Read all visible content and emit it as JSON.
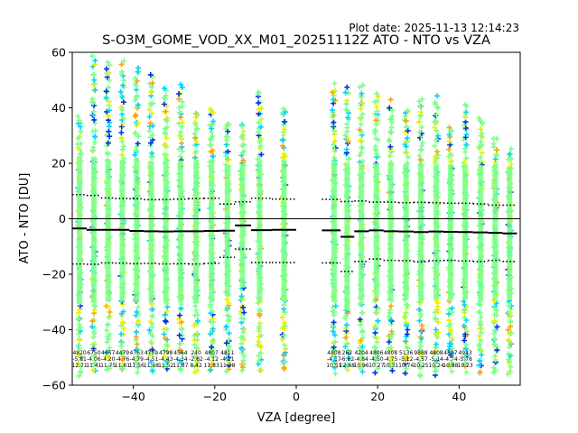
{
  "plot_date": "Plot date: 2025-11-13 12:14:23",
  "chart_data": {
    "type": "scatter",
    "title": "S-O3M_GOME_VOD_XX_M01_20251112Z ATO - NTO vs VZA",
    "xlabel": "VZA [degree]",
    "ylabel": "ATO - NTO [DU]",
    "xlim": [
      -55,
      55
    ],
    "ylim": [
      -60,
      60
    ],
    "x_ticks": [
      -40,
      -20,
      0,
      20,
      40
    ],
    "y_ticks": [
      -60,
      -40,
      -20,
      0,
      20,
      40,
      60
    ],
    "zero_line": 0,
    "colors": {
      "low": "#0033dd",
      "mid_low": "#00d4ff",
      "mid": "#7cff8a",
      "mid_high": "#e8f000",
      "high": "#ffa200"
    },
    "bins": [
      {
        "vza": -53.2,
        "mean": -3.5,
        "upper": 8.7,
        "lower": -16.3,
        "spread_top": 37,
        "spread_bottom": -57
      },
      {
        "vza": -49.7,
        "mean": -4.0,
        "upper": 8.4,
        "lower": -16.4,
        "spread_top": 58,
        "spread_bottom": -55
      },
      {
        "vza": -46.2,
        "mean": -4.0,
        "upper": 7.5,
        "lower": -15.9,
        "spread_top": 57,
        "spread_bottom": -55
      },
      {
        "vza": -42.7,
        "mean": -4.0,
        "upper": 7.3,
        "lower": -16.0,
        "spread_top": 56,
        "spread_bottom": -55
      },
      {
        "vza": -39.2,
        "mean": -4.4,
        "upper": 7.2,
        "lower": -16.2,
        "spread_top": 55,
        "spread_bottom": -55
      },
      {
        "vza": -35.6,
        "mean": -4.5,
        "upper": 6.9,
        "lower": -16.1,
        "spread_top": 52,
        "spread_bottom": -55
      },
      {
        "vza": -32.0,
        "mean": -4.6,
        "upper": 6.9,
        "lower": -16.3,
        "spread_top": 47,
        "spread_bottom": -55
      },
      {
        "vza": -28.4,
        "mean": -4.5,
        "upper": 7.1,
        "lower": -16.2,
        "spread_top": 48,
        "spread_bottom": -55
      },
      {
        "vza": -24.6,
        "mean": -4.5,
        "upper": 7.3,
        "lower": -16.3,
        "spread_top": 38,
        "spread_bottom": -55
      },
      {
        "vza": -20.8,
        "mean": -4.4,
        "upper": 7.4,
        "lower": -16.1,
        "spread_top": 40,
        "spread_bottom": -55
      },
      {
        "vza": -16.9,
        "mean": -4.3,
        "upper": 5.3,
        "lower": -13.9,
        "spread_top": 35,
        "spread_bottom": -55
      },
      {
        "vza": -13.2,
        "mean": -2.4,
        "upper": 6.1,
        "lower": -10.9,
        "spread_top": 34,
        "spread_bottom": -55
      },
      {
        "vza": -9.0,
        "mean": -4.1,
        "upper": 7.4,
        "lower": -15.8,
        "spread_top": 46,
        "spread_bottom": -55
      },
      {
        "vza": -3.0,
        "mean": -4.0,
        "upper": 7.1,
        "lower": -15.8,
        "spread_top": 40,
        "spread_bottom": -55
      },
      {
        "vza": 9.3,
        "mean": -4.2,
        "upper": 7.0,
        "lower": -15.9,
        "spread_top": 48,
        "spread_bottom": -55
      },
      {
        "vza": 12.5,
        "mean": -6.5,
        "upper": 6.2,
        "lower": -19.0,
        "spread_top": 47,
        "spread_bottom": -55
      },
      {
        "vza": 16.0,
        "mean": -4.5,
        "upper": 6.4,
        "lower": -15.4,
        "spread_top": 48,
        "spread_bottom": -55
      },
      {
        "vza": 19.7,
        "mean": -4.2,
        "upper": 6.0,
        "lower": -14.5,
        "spread_top": 45,
        "spread_bottom": -55
      },
      {
        "vza": 23.2,
        "mean": -4.5,
        "upper": 6.0,
        "lower": -15.0,
        "spread_top": 42,
        "spread_bottom": -55
      },
      {
        "vza": 27.0,
        "mean": -4.6,
        "upper": 5.8,
        "lower": -15.1,
        "spread_top": 40,
        "spread_bottom": -55
      },
      {
        "vza": 30.6,
        "mean": -4.8,
        "upper": 5.9,
        "lower": -15.5,
        "spread_top": 43,
        "spread_bottom": -57
      },
      {
        "vza": 34.4,
        "mean": -4.6,
        "upper": 5.8,
        "lower": -15.1,
        "spread_top": 44,
        "spread_bottom": -56
      },
      {
        "vza": 37.9,
        "mean": -4.7,
        "upper": 5.6,
        "lower": -15.0,
        "spread_top": 33,
        "spread_bottom": -55
      },
      {
        "vza": 41.5,
        "mean": -4.8,
        "upper": 5.6,
        "lower": -15.2,
        "spread_top": 41,
        "spread_bottom": -55
      },
      {
        "vza": 45.3,
        "mean": -4.9,
        "upper": 5.4,
        "lower": -15.4,
        "spread_top": 37,
        "spread_bottom": -56
      },
      {
        "vza": 48.9,
        "mean": -5.1,
        "upper": 4.9,
        "lower": -15.0,
        "spread_top": 29,
        "spread_bottom": -56
      },
      {
        "vza": 52.4,
        "mean": -5.3,
        "upper": 4.9,
        "lower": -15.4,
        "spread_top": 25,
        "spread_bottom": -56
      }
    ],
    "annotations": [
      {
        "vza": -53.2,
        "n": "4820",
        "mean": "-5.81",
        "std": "12.71"
      },
      {
        "vza": -49.7,
        "n": "6750",
        "mean": "-4.06",
        "std": "11.41"
      },
      {
        "vza": -46.2,
        "n": "4657",
        "mean": "-4.20",
        "std": "11.75"
      },
      {
        "vza": -42.7,
        "n": "4479",
        "mean": "-4.76",
        "std": "11.61"
      },
      {
        "vza": -39.2,
        "n": "4763",
        "mean": "-4.79",
        "std": "11.56"
      },
      {
        "vza": -35.6,
        "n": "4779",
        "mean": "-4.51",
        "std": "11.68"
      },
      {
        "vza": -32.0,
        "n": "4798",
        "mean": "-4.43",
        "std": "11.52"
      },
      {
        "vza": -28.4,
        "n": "4564",
        "mean": "-4.34",
        "std": "11.87"
      },
      {
        "vza": -24.6,
        "n": "240",
        "mean": "-2.62",
        "std": "8.42"
      },
      {
        "vza": -20.8,
        "n": "4807",
        "mean": "-4.12",
        "std": "11.83"
      },
      {
        "vza": -16.9,
        "n": "4811",
        "mean": "-4.11",
        "std": "11.28"
      },
      {
        "vza": 9.3,
        "n": "4808",
        "mean": "-4.17",
        "std": "10.51"
      },
      {
        "vza": 12.5,
        "n": "262",
        "mean": "-6.62",
        "std": "12.68"
      },
      {
        "vza": 16.0,
        "n": "4204",
        "mean": "-4.84",
        "std": "10.96"
      },
      {
        "vza": 19.7,
        "n": "4806",
        "mean": "-4.50",
        "std": "10.27"
      },
      {
        "vza": 23.2,
        "n": "4808",
        "mean": "-4.75",
        "std": "10.31"
      },
      {
        "vza": 27.0,
        "n": "5136",
        "mean": "-5.12",
        "std": "10.74"
      },
      {
        "vza": 30.6,
        "n": "9888",
        "mean": "-4.57",
        "std": "10.25"
      },
      {
        "vza": 34.4,
        "n": "4808",
        "mean": "-5.14",
        "std": "10.24"
      },
      {
        "vza": 37.9,
        "n": "4807",
        "mean": "-4.74",
        "std": "10.88"
      },
      {
        "vza": 41.5,
        "n": "4943",
        "mean": "-5.78",
        "std": "10.23"
      }
    ]
  }
}
